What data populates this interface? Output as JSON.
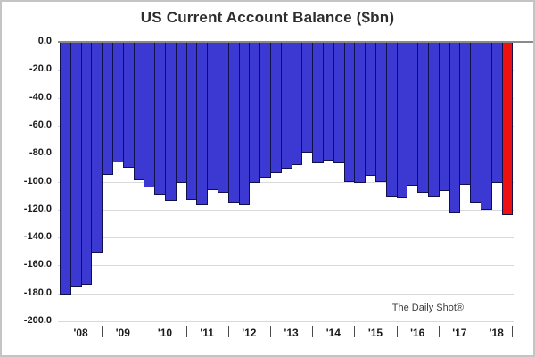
{
  "title": "US Current Account Balance ($bn)",
  "watermark": "The Daily Shot®",
  "colors": {
    "bar_fill": "#3c38d2",
    "bar_border": "#10104a",
    "highlight_fill": "#ee1111",
    "zero_line": "#8a8a8a",
    "gridline": "#d9d9d9",
    "axis_text": "#1a1a1a",
    "title_text": "#2d2d2d",
    "watermark_text": "#3c3c3c",
    "background": "#ffffff"
  },
  "chart_data": {
    "type": "bar",
    "title": "US Current Account Balance ($bn)",
    "xlabel": "",
    "ylabel": "",
    "ylim": [
      -200,
      0
    ],
    "y_tick_interval": 20,
    "y_tick_labels": [
      "0.0",
      "-20.0",
      "-40.0",
      "-60.0",
      "-80.0",
      "-100.0",
      "-120.0",
      "-140.0",
      "-160.0",
      "-180.0",
      "-200.0"
    ],
    "y_tick_values": [
      0,
      -20,
      -40,
      -60,
      -80,
      -100,
      -120,
      -140,
      -160,
      -180,
      -200
    ],
    "grid": true,
    "legend": false,
    "annotation": "The Daily Shot®",
    "x_group_labels": [
      "'08",
      "'09",
      "'10",
      "'11",
      "'12",
      "'13",
      "'14",
      "'15",
      "'16",
      "'17",
      "'18"
    ],
    "quarters_per_group": [
      4,
      4,
      4,
      4,
      4,
      4,
      4,
      4,
      4,
      4,
      3
    ],
    "categories": [
      "2008 Q1",
      "2008 Q2",
      "2008 Q3",
      "2008 Q4",
      "2009 Q1",
      "2009 Q2",
      "2009 Q3",
      "2009 Q4",
      "2010 Q1",
      "2010 Q2",
      "2010 Q3",
      "2010 Q4",
      "2011 Q1",
      "2011 Q2",
      "2011 Q3",
      "2011 Q4",
      "2012 Q1",
      "2012 Q2",
      "2012 Q3",
      "2012 Q4",
      "2013 Q1",
      "2013 Q2",
      "2013 Q3",
      "2013 Q4",
      "2014 Q1",
      "2014 Q2",
      "2014 Q3",
      "2014 Q4",
      "2015 Q1",
      "2015 Q2",
      "2015 Q3",
      "2015 Q4",
      "2016 Q1",
      "2016 Q2",
      "2016 Q3",
      "2016 Q4",
      "2017 Q1",
      "2017 Q2",
      "2017 Q3",
      "2017 Q4",
      "2018 Q1",
      "2018 Q2",
      "2018 Q3"
    ],
    "values": [
      -181,
      -176,
      -174,
      -151,
      -95,
      -86,
      -90,
      -99,
      -104,
      -109,
      -114,
      -101,
      -113,
      -117,
      -106,
      -108,
      -115,
      -117,
      -101,
      -97,
      -94,
      -91,
      -88,
      -79,
      -87,
      -85,
      -87,
      -100,
      -101,
      -96,
      -100,
      -111,
      -112,
      -103,
      -108,
      -111,
      -107,
      -123,
      -102,
      -115,
      -120,
      -101,
      -124
    ],
    "bar_color": "#3c38d2",
    "highlight_index": 42,
    "highlight_color": "#ee1111"
  }
}
